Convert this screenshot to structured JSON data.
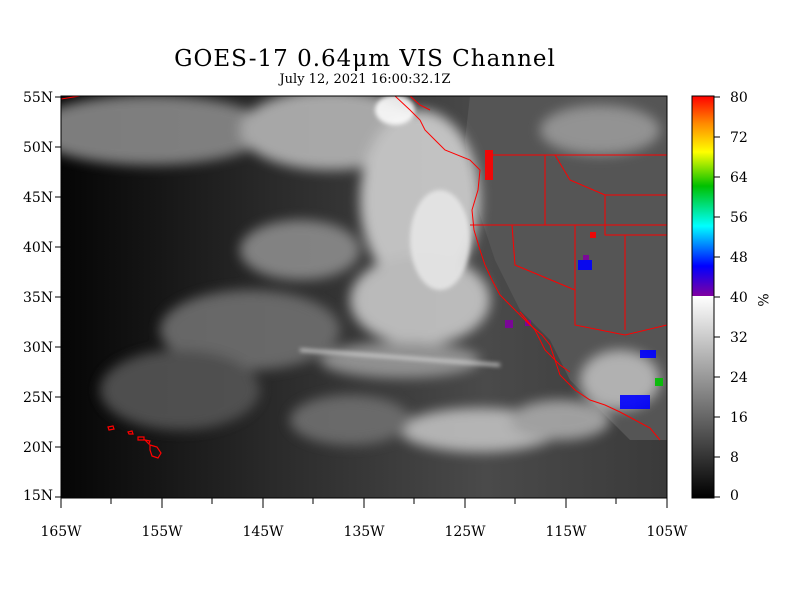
{
  "title": "GOES-17  0.64",
  "title_unit": "μm",
  "title_rest": " VIS Channel",
  "subtitle": "July 12,  2021 16:00:32.1Z",
  "lat_labels": [
    "55N",
    "50N",
    "45N",
    "40N",
    "35N",
    "30N",
    "25N",
    "20N",
    "15N"
  ],
  "lon_labels": [
    "165W",
    "155W",
    "145W",
    "135W",
    "125W",
    "115W",
    "105W"
  ],
  "colorbar": {
    "ticks": [
      "80",
      "72",
      "64",
      "56",
      "48",
      "40",
      "32",
      "24",
      "16",
      "8",
      "0"
    ],
    "unit": "%",
    "colors": {
      "high": "#ff0000",
      "orange": "#ff8c00",
      "yellow": "#ffff00",
      "green": "#00c000",
      "cyan": "#00ffff",
      "blue": "#0000ff",
      "purple": "#8000a0",
      "white": "#ffffff",
      "black": "#000000"
    }
  },
  "map": {
    "border_color": "#ff0000",
    "features": [
      "west-coast-us",
      "hawaii-islands",
      "state-borders",
      "baja-california"
    ]
  }
}
